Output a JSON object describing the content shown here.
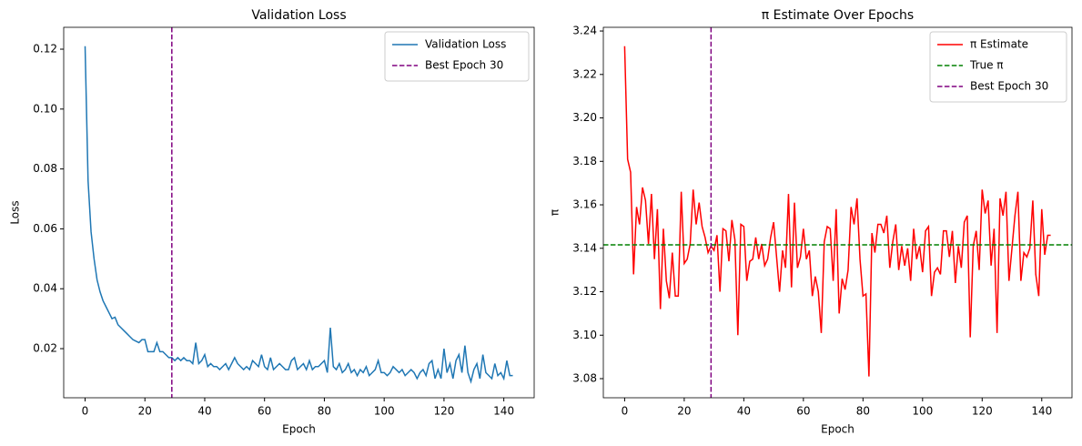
{
  "chart_data": [
    {
      "type": "line",
      "title": "Validation Loss",
      "x_label": "Epoch",
      "y_label": "Loss",
      "x": [
        0,
        1,
        2,
        3,
        4,
        5,
        6,
        7,
        8,
        9,
        10,
        11,
        12,
        13,
        14,
        15,
        16,
        17,
        18,
        19,
        20,
        21,
        22,
        23,
        24,
        25,
        26,
        27,
        28,
        29,
        30,
        31,
        32,
        33,
        34,
        35,
        36,
        37,
        38,
        39,
        40,
        41,
        42,
        43,
        44,
        45,
        46,
        47,
        48,
        49,
        50,
        51,
        52,
        53,
        54,
        55,
        56,
        57,
        58,
        59,
        60,
        61,
        62,
        63,
        64,
        65,
        66,
        67,
        68,
        69,
        70,
        71,
        72,
        73,
        74,
        75,
        76,
        77,
        78,
        79,
        80,
        81,
        82,
        83,
        84,
        85,
        86,
        87,
        88,
        89,
        90,
        91,
        92,
        93,
        94,
        95,
        96,
        97,
        98,
        99,
        100,
        101,
        102,
        103,
        104,
        105,
        106,
        107,
        108,
        109,
        110,
        111,
        112,
        113,
        114,
        115,
        116,
        117,
        118,
        119,
        120,
        121,
        122,
        123,
        124,
        125,
        126,
        127,
        128,
        129,
        130,
        131,
        132,
        133,
        134,
        135,
        136,
        137,
        138,
        139,
        140,
        141,
        142,
        143
      ],
      "series": [
        {
          "name": "Validation Loss",
          "color": "#1f77b4",
          "values": [
            0.121,
            0.076,
            0.059,
            0.05,
            0.043,
            0.039,
            0.036,
            0.034,
            0.032,
            0.03,
            0.0305,
            0.028,
            0.027,
            0.026,
            0.025,
            0.024,
            0.023,
            0.0225,
            0.022,
            0.023,
            0.023,
            0.019,
            0.019,
            0.019,
            0.022,
            0.019,
            0.019,
            0.018,
            0.017,
            0.017,
            0.016,
            0.017,
            0.016,
            0.017,
            0.016,
            0.016,
            0.015,
            0.022,
            0.015,
            0.016,
            0.018,
            0.014,
            0.015,
            0.014,
            0.014,
            0.013,
            0.014,
            0.015,
            0.013,
            0.015,
            0.017,
            0.015,
            0.014,
            0.013,
            0.014,
            0.013,
            0.016,
            0.015,
            0.014,
            0.018,
            0.014,
            0.013,
            0.017,
            0.013,
            0.014,
            0.015,
            0.014,
            0.013,
            0.013,
            0.016,
            0.017,
            0.013,
            0.014,
            0.015,
            0.013,
            0.016,
            0.013,
            0.014,
            0.014,
            0.015,
            0.016,
            0.012,
            0.027,
            0.014,
            0.013,
            0.015,
            0.012,
            0.013,
            0.015,
            0.012,
            0.013,
            0.011,
            0.013,
            0.012,
            0.014,
            0.011,
            0.012,
            0.013,
            0.016,
            0.012,
            0.012,
            0.011,
            0.012,
            0.014,
            0.013,
            0.012,
            0.013,
            0.011,
            0.012,
            0.013,
            0.012,
            0.01,
            0.012,
            0.013,
            0.011,
            0.015,
            0.016,
            0.01,
            0.013,
            0.01,
            0.02,
            0.012,
            0.015,
            0.01,
            0.016,
            0.018,
            0.012,
            0.021,
            0.012,
            0.009,
            0.013,
            0.015,
            0.01,
            0.018,
            0.012,
            0.011,
            0.01,
            0.015,
            0.011,
            0.012,
            0.01,
            0.016,
            0.011,
            0.011
          ]
        }
      ],
      "reference_lines": [
        {
          "name": "Best Epoch 30",
          "orientation": "vertical",
          "value": 29,
          "color": "#800080",
          "style": "dashed"
        }
      ],
      "xlim": [
        -7.15,
        150.15
      ],
      "xticks": [
        0,
        20,
        40,
        60,
        80,
        100,
        120,
        140
      ],
      "ylim": [
        0.0036,
        0.1273
      ],
      "yticks": [
        0.02,
        0.04,
        0.06,
        0.08,
        {
          "value": 0.1,
          "label": "0.10"
        },
        0.12
      ],
      "legend": "upper right",
      "grid": false
    },
    {
      "type": "line",
      "title": "π Estimate Over Epochs",
      "x_label": "Epoch",
      "y_label": "π",
      "x": [
        0,
        1,
        2,
        3,
        4,
        5,
        6,
        7,
        8,
        9,
        10,
        11,
        12,
        13,
        14,
        15,
        16,
        17,
        18,
        19,
        20,
        21,
        22,
        23,
        24,
        25,
        26,
        27,
        28,
        29,
        30,
        31,
        32,
        33,
        34,
        35,
        36,
        37,
        38,
        39,
        40,
        41,
        42,
        43,
        44,
        45,
        46,
        47,
        48,
        49,
        50,
        51,
        52,
        53,
        54,
        55,
        56,
        57,
        58,
        59,
        60,
        61,
        62,
        63,
        64,
        65,
        66,
        67,
        68,
        69,
        70,
        71,
        72,
        73,
        74,
        75,
        76,
        77,
        78,
        79,
        80,
        81,
        82,
        83,
        84,
        85,
        86,
        87,
        88,
        89,
        90,
        91,
        92,
        93,
        94,
        95,
        96,
        97,
        98,
        99,
        100,
        101,
        102,
        103,
        104,
        105,
        106,
        107,
        108,
        109,
        110,
        111,
        112,
        113,
        114,
        115,
        116,
        117,
        118,
        119,
        120,
        121,
        122,
        123,
        124,
        125,
        126,
        127,
        128,
        129,
        130,
        131,
        132,
        133,
        134,
        135,
        136,
        137,
        138,
        139,
        140,
        141,
        142,
        143
      ],
      "series": [
        {
          "name": "π Estimate",
          "color": "#ff0000",
          "values": [
            3.233,
            3.181,
            3.175,
            3.128,
            3.159,
            3.151,
            3.168,
            3.162,
            3.142,
            3.165,
            3.135,
            3.158,
            3.112,
            3.149,
            3.125,
            3.117,
            3.138,
            3.118,
            3.118,
            3.166,
            3.133,
            3.135,
            3.142,
            3.167,
            3.151,
            3.161,
            3.15,
            3.145,
            3.138,
            3.141,
            3.139,
            3.146,
            3.12,
            3.149,
            3.148,
            3.134,
            3.153,
            3.144,
            3.1,
            3.151,
            3.15,
            3.125,
            3.134,
            3.135,
            3.145,
            3.135,
            3.142,
            3.132,
            3.135,
            3.145,
            3.152,
            3.136,
            3.12,
            3.139,
            3.131,
            3.165,
            3.122,
            3.161,
            3.131,
            3.136,
            3.149,
            3.135,
            3.139,
            3.118,
            3.127,
            3.12,
            3.101,
            3.143,
            3.15,
            3.149,
            3.125,
            3.158,
            3.11,
            3.126,
            3.121,
            3.13,
            3.159,
            3.151,
            3.163,
            3.135,
            3.118,
            3.119,
            3.081,
            3.147,
            3.138,
            3.151,
            3.151,
            3.147,
            3.155,
            3.131,
            3.143,
            3.151,
            3.13,
            3.141,
            3.132,
            3.14,
            3.125,
            3.149,
            3.135,
            3.141,
            3.129,
            3.148,
            3.15,
            3.118,
            3.129,
            3.131,
            3.128,
            3.148,
            3.148,
            3.136,
            3.148,
            3.124,
            3.141,
            3.131,
            3.152,
            3.155,
            3.099,
            3.141,
            3.148,
            3.13,
            3.167,
            3.156,
            3.162,
            3.132,
            3.149,
            3.101,
            3.163,
            3.155,
            3.166,
            3.125,
            3.14,
            3.155,
            3.166,
            3.125,
            3.138,
            3.136,
            3.14,
            3.162,
            3.128,
            3.118,
            3.158,
            3.137,
            3.146,
            3.146
          ]
        }
      ],
      "reference_lines": [
        {
          "name": "True π",
          "orientation": "horizontal",
          "value": 3.14159,
          "color": "#008000",
          "style": "dashed"
        },
        {
          "name": "Best Epoch 30",
          "orientation": "vertical",
          "value": 29,
          "color": "#800080",
          "style": "dashed"
        }
      ],
      "xlim": [
        -7.15,
        150.15
      ],
      "xticks": [
        0,
        20,
        40,
        60,
        80,
        100,
        120,
        140
      ],
      "ylim": [
        3.0712,
        3.2417
      ],
      "yticks": [
        3.08,
        {
          "value": 3.1,
          "label": "3.10"
        },
        3.12,
        3.14,
        3.16,
        3.18,
        {
          "value": 3.2,
          "label": "3.20"
        },
        3.22,
        3.24
      ],
      "legend": "upper right",
      "grid": false
    }
  ]
}
